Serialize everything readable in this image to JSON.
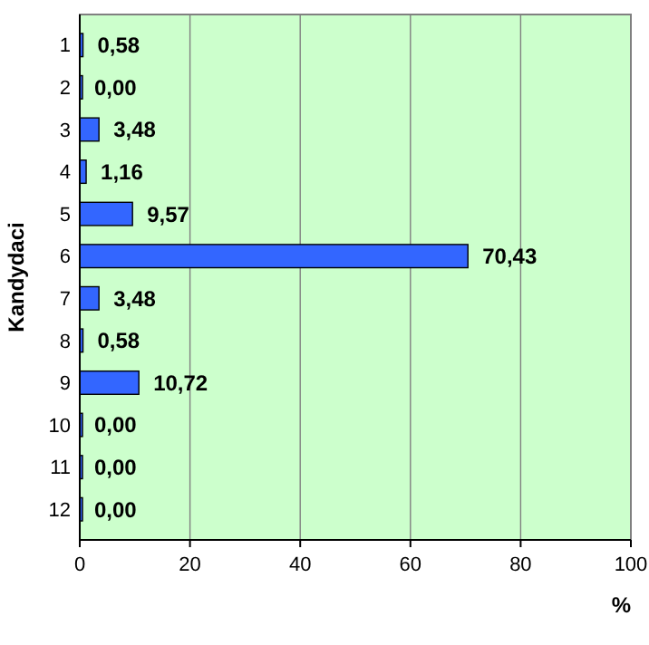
{
  "chart_data": {
    "type": "bar",
    "orientation": "horizontal",
    "ylabel": "Kandydaci",
    "xlabel": "%",
    "categories": [
      "1",
      "2",
      "3",
      "4",
      "5",
      "6",
      "7",
      "8",
      "9",
      "10",
      "11",
      "12"
    ],
    "values": [
      0.58,
      0,
      3.48,
      1.16,
      9.57,
      70.43,
      3.48,
      0.58,
      10.72,
      0,
      0,
      0
    ],
    "value_labels": [
      "0,58",
      "0,00",
      "3,48",
      "1,16",
      "9,57",
      "70,43",
      "3,48",
      "0,58",
      "10,72",
      "0,00",
      "0,00",
      "0,00"
    ],
    "color": "#3366ff",
    "xlim": [
      0,
      100
    ],
    "xticks": [
      0,
      20,
      40,
      60,
      80,
      100
    ],
    "grid": "x"
  }
}
